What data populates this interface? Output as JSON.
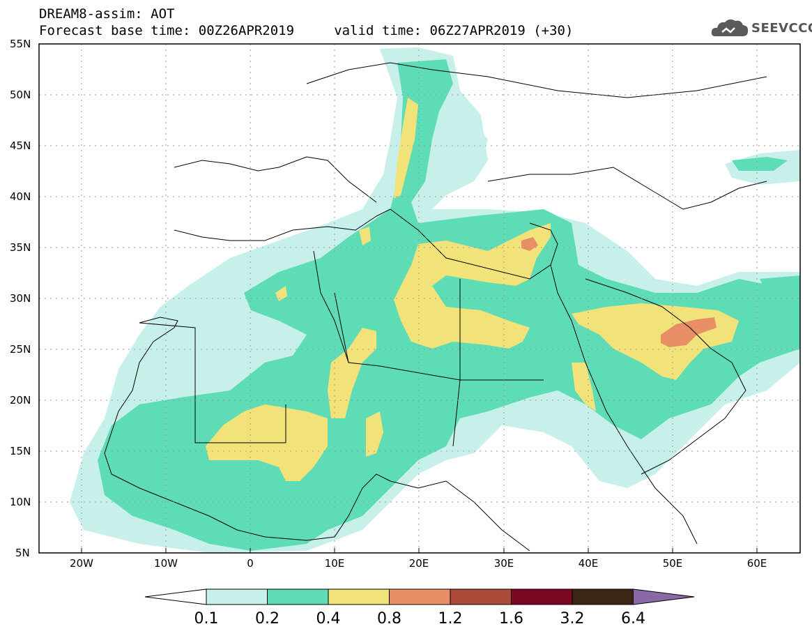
{
  "header": {
    "line1": "DREAM8-assim: AOT",
    "line2": "Forecast base time: 00Z26APR2019     valid time: 06Z27APR2019 (+30)"
  },
  "logo": {
    "text": "SEEVCCC",
    "icon": "cloud-icon",
    "color": "#5a5a5a"
  },
  "map": {
    "lat_labels": [
      "55N",
      "50N",
      "45N",
      "40N",
      "35N",
      "30N",
      "25N",
      "20N",
      "15N",
      "10N",
      "5N"
    ],
    "lon_labels": [
      "20W",
      "10W",
      "0",
      "10E",
      "20E",
      "30E",
      "40E",
      "50E",
      "60E"
    ],
    "lon_range": [
      -25,
      65
    ],
    "lat_range": [
      5,
      55
    ]
  },
  "legend": {
    "ticks": [
      "0.1",
      "0.2",
      "0.4",
      "0.8",
      "1.2",
      "1.6",
      "3.2",
      "6.4"
    ],
    "colors": [
      "#ffffff",
      "#c8f0ea",
      "#5ddcb6",
      "#f2e27a",
      "#e98f66",
      "#ac4b3a",
      "#7a0a23",
      "#3b2514",
      "#8a6aa6"
    ]
  }
}
